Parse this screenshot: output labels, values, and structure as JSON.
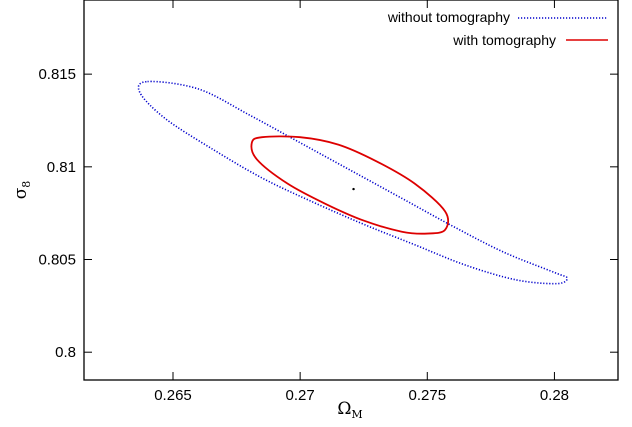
{
  "chart_data": {
    "type": "line",
    "title": "",
    "xlabel": {
      "main": "Ω",
      "sub": "M"
    },
    "ylabel": {
      "main": "σ",
      "sub": "8"
    },
    "xlim": [
      0.2615,
      0.2825
    ],
    "ylim": [
      0.7985,
      0.819
    ],
    "grid": false,
    "legend_position": "top-right",
    "x_ticks": [
      {
        "value": 0.265,
        "label": "0.265"
      },
      {
        "value": 0.27,
        "label": "0.27"
      },
      {
        "value": 0.275,
        "label": "0.275"
      },
      {
        "value": 0.28,
        "label": "0.28"
      }
    ],
    "y_ticks": [
      {
        "value": 0.8,
        "label": "0.8"
      },
      {
        "value": 0.805,
        "label": "0.805"
      },
      {
        "value": 0.81,
        "label": "0.81"
      },
      {
        "value": 0.815,
        "label": "0.815"
      }
    ],
    "center_point": {
      "x": 0.2721,
      "y": 0.8088
    },
    "series": [
      {
        "name": "without tomography",
        "color": "#0000cc",
        "style": "dotted",
        "points": [
          [
            0.264,
            0.8146
          ],
          [
            0.266,
            0.8142
          ],
          [
            0.268,
            0.8128
          ],
          [
            0.27,
            0.8113
          ],
          [
            0.272,
            0.8098
          ],
          [
            0.274,
            0.8083
          ],
          [
            0.276,
            0.8068
          ],
          [
            0.278,
            0.8054
          ],
          [
            0.28,
            0.8043
          ],
          [
            0.2805,
            0.804
          ],
          [
            0.2801,
            0.8037
          ],
          [
            0.2785,
            0.8039
          ],
          [
            0.2765,
            0.8047
          ],
          [
            0.2745,
            0.8058
          ],
          [
            0.2725,
            0.8069
          ],
          [
            0.2705,
            0.8081
          ],
          [
            0.2685,
            0.8094
          ],
          [
            0.2665,
            0.811
          ],
          [
            0.2647,
            0.8126
          ],
          [
            0.2637,
            0.814
          ],
          [
            0.264,
            0.8146
          ]
        ]
      },
      {
        "name": "with tomography",
        "color": "#dd0000",
        "style": "solid",
        "points": [
          [
            0.2685,
            0.8116
          ],
          [
            0.27,
            0.8116
          ],
          [
            0.2715,
            0.8112
          ],
          [
            0.273,
            0.8103
          ],
          [
            0.2745,
            0.8091
          ],
          [
            0.2757,
            0.8076
          ],
          [
            0.2757,
            0.8066
          ],
          [
            0.275,
            0.8064
          ],
          [
            0.274,
            0.8065
          ],
          [
            0.2725,
            0.8071
          ],
          [
            0.271,
            0.808
          ],
          [
            0.2695,
            0.8091
          ],
          [
            0.2683,
            0.8104
          ],
          [
            0.2681,
            0.8113
          ],
          [
            0.2685,
            0.8116
          ]
        ]
      }
    ]
  }
}
